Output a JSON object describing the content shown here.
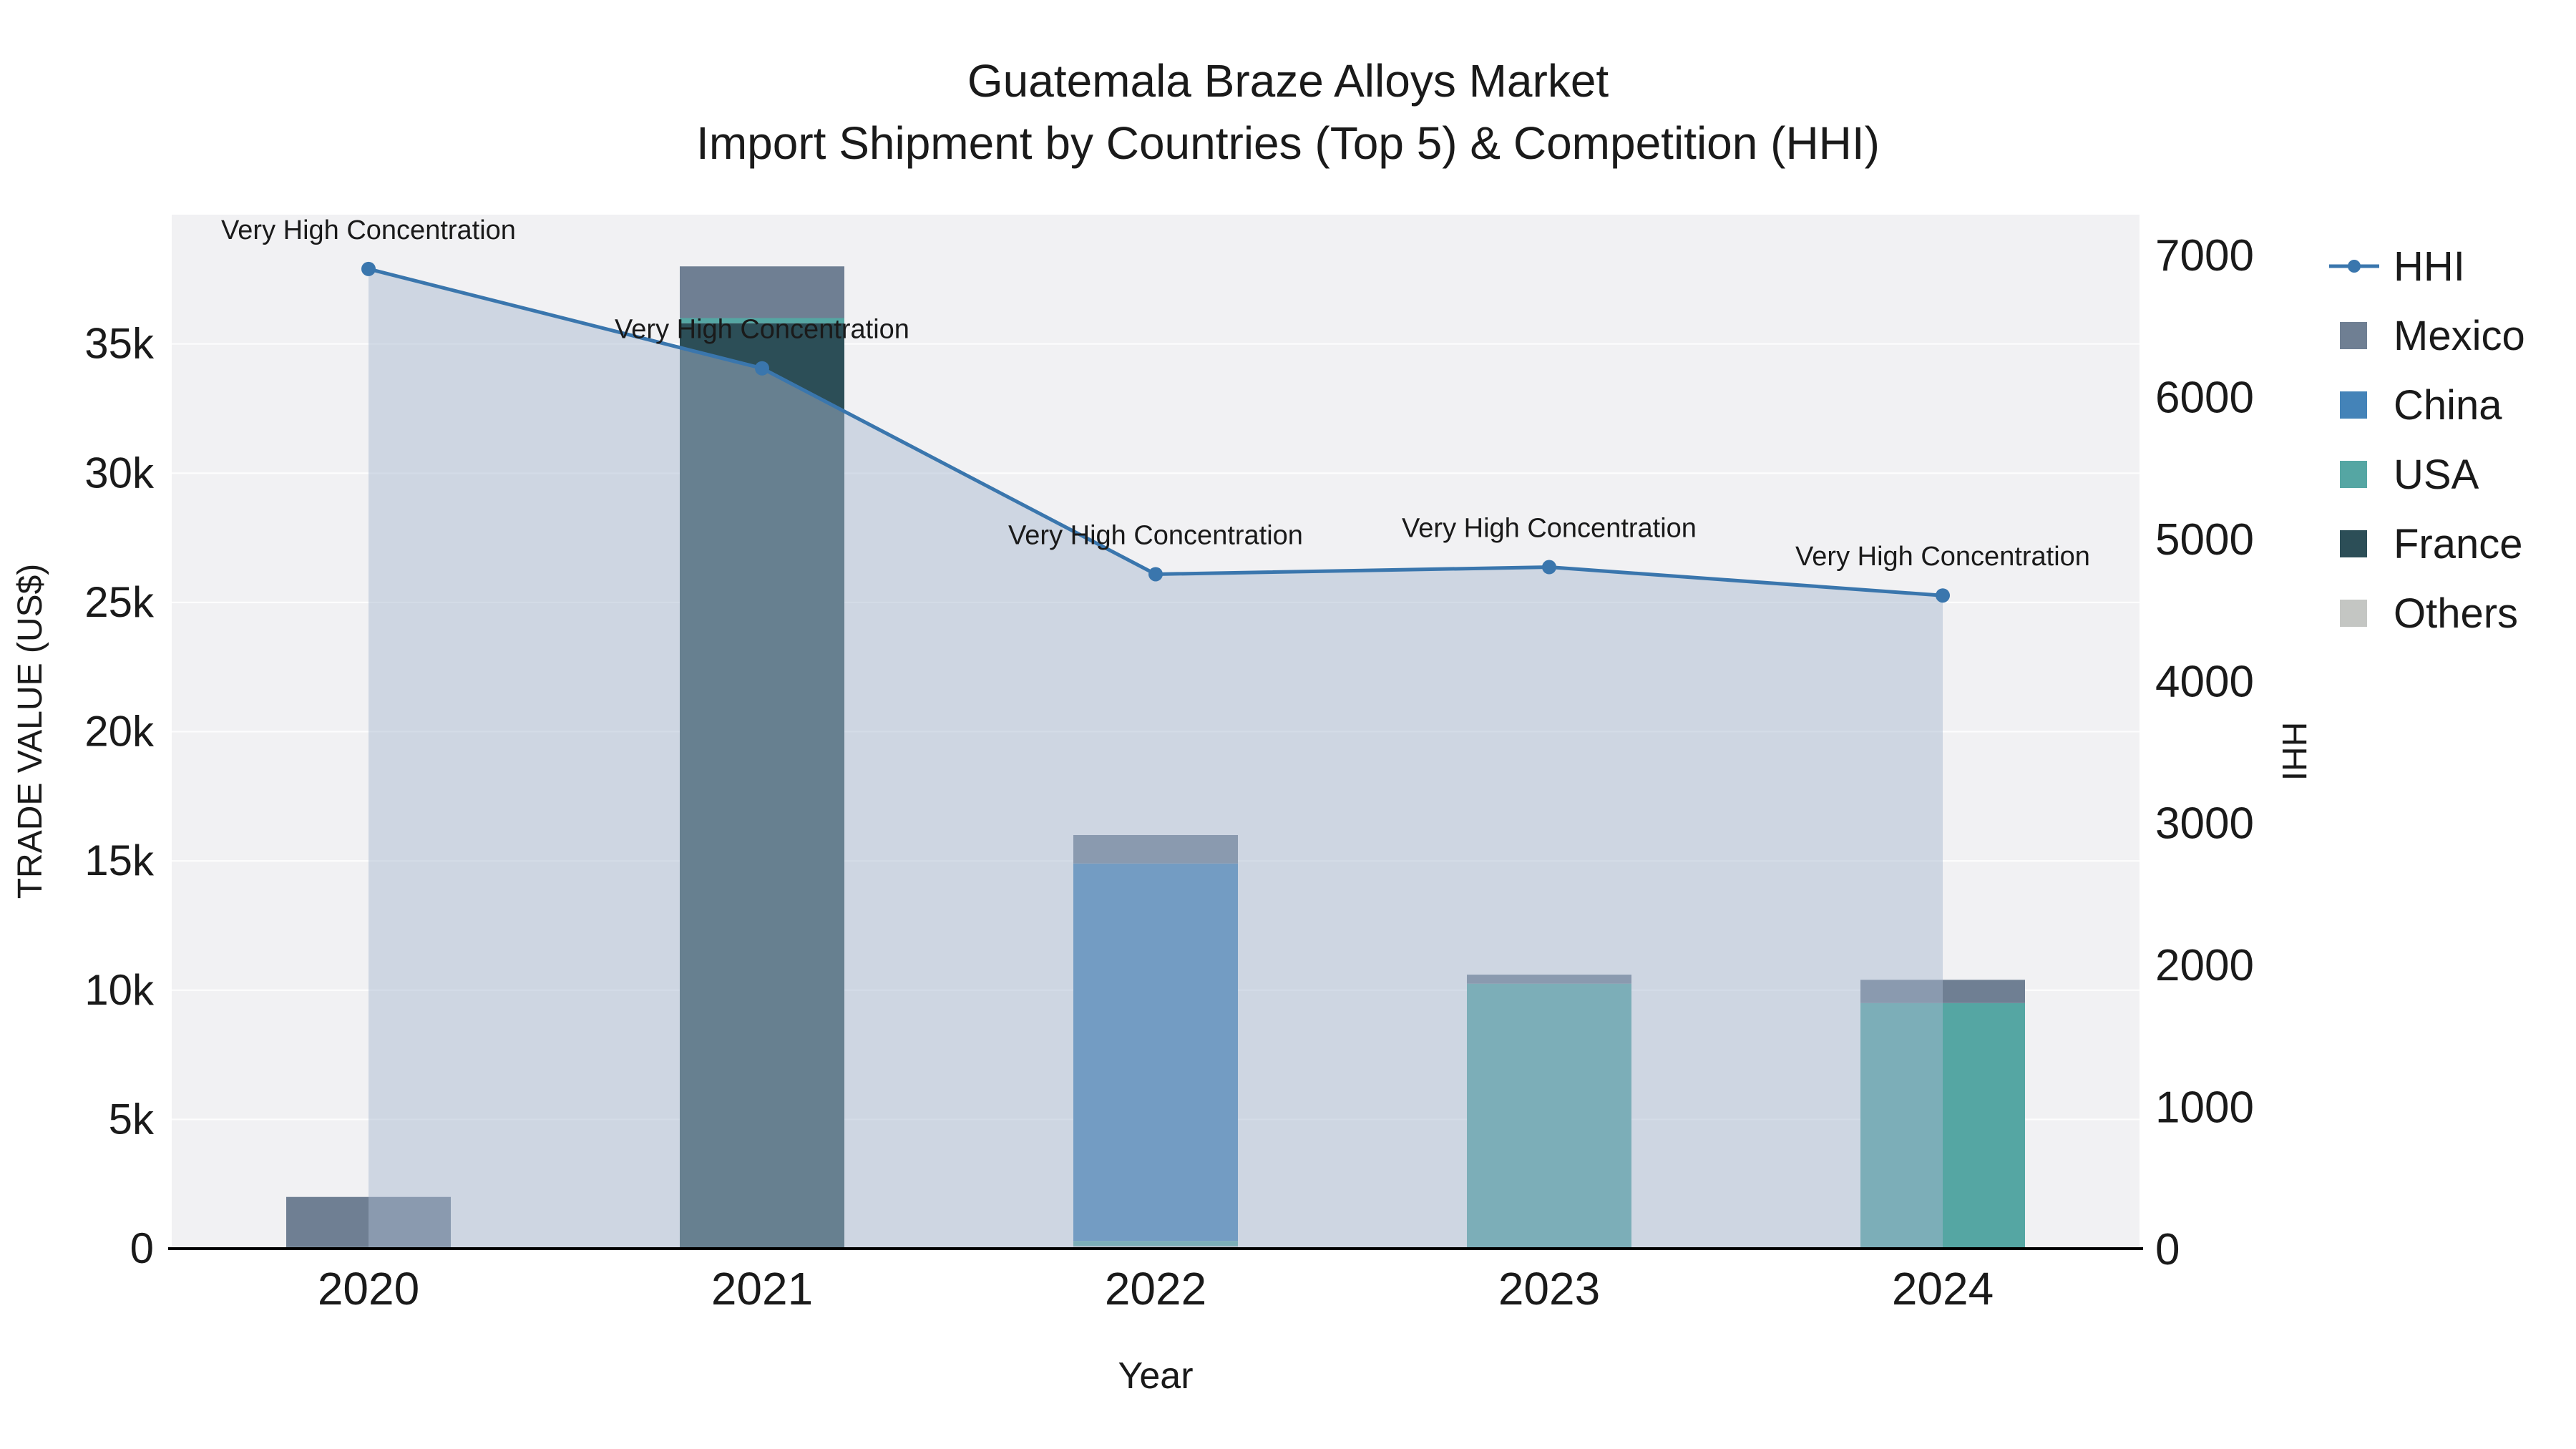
{
  "title": {
    "line1": "Guatemala Braze Alloys Market",
    "line2": "Import Shipment by Countries (Top 5) & Competition (HHI)"
  },
  "chart_data": {
    "type": "bar+line",
    "categories": [
      "2020",
      "2021",
      "2022",
      "2023",
      "2024"
    ],
    "bar_series": [
      {
        "name": "Others",
        "color": "#c4c6c3",
        "values": [
          0,
          0,
          100,
          0,
          0
        ]
      },
      {
        "name": "France",
        "color": "#2c4e57",
        "values": [
          0,
          35800,
          0,
          0,
          0
        ]
      },
      {
        "name": "USA",
        "color": "#55a6a3",
        "values": [
          60,
          200,
          200,
          10250,
          9500
        ]
      },
      {
        "name": "China",
        "color": "#4483b8",
        "values": [
          0,
          0,
          14600,
          0,
          0
        ]
      },
      {
        "name": "Mexico",
        "color": "#6f7f93",
        "values": [
          1940,
          2000,
          1100,
          350,
          900
        ]
      }
    ],
    "line_series": {
      "name": "HHI",
      "color": "#3a76ad",
      "fill": "rgba(168,184,206,0.48)",
      "values": [
        6900,
        6200,
        4750,
        4800,
        4600
      ]
    },
    "annotations": [
      "Very High Concentration",
      "Very High Concentration",
      "Very High Concentration",
      "Very High Concentration",
      "Very High Concentration"
    ],
    "left_axis": {
      "title": "TRADE VALUE (US$)",
      "ticks": [
        0,
        5000,
        10000,
        15000,
        20000,
        25000,
        30000,
        35000
      ],
      "tick_labels": [
        "0",
        "5k",
        "10k",
        "15k",
        "20k",
        "25k",
        "30k",
        "35k"
      ],
      "max": 40000
    },
    "right_axis": {
      "title": "HHI",
      "ticks": [
        0,
        1000,
        2000,
        3000,
        4000,
        5000,
        6000,
        7000
      ],
      "tick_labels": [
        "0",
        "1000",
        "2000",
        "3000",
        "4000",
        "5000",
        "6000",
        "7000"
      ],
      "max": 7000
    },
    "x_axis": {
      "title": "Year"
    },
    "legend": [
      {
        "name": "HHI",
        "marker": "line",
        "color": "#3a76ad"
      },
      {
        "name": "Mexico",
        "marker": "square",
        "color": "#6f7f93"
      },
      {
        "name": "China",
        "marker": "square",
        "color": "#4483b8"
      },
      {
        "name": "USA",
        "marker": "square",
        "color": "#55a6a3"
      },
      {
        "name": "France",
        "marker": "square",
        "color": "#2c4e57"
      },
      {
        "name": "Others",
        "marker": "square",
        "color": "#c4c6c3"
      }
    ]
  }
}
